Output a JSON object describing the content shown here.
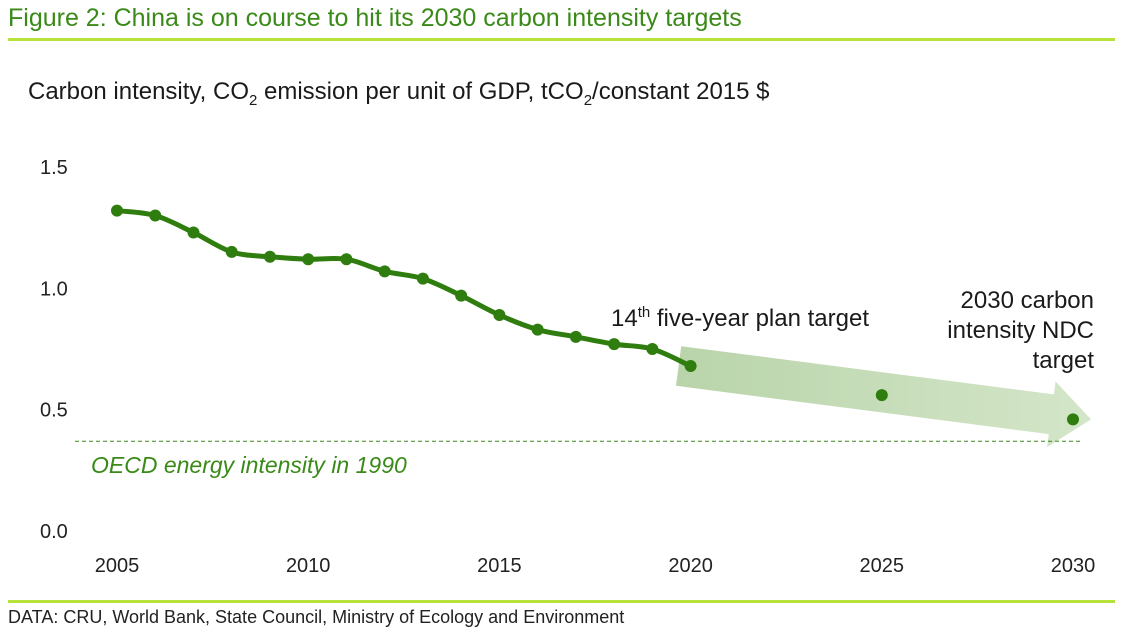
{
  "title": "Figure 2: China is on course to hit its 2030 carbon intensity targets",
  "source": "DATA: CRU, World Bank, State Council, Ministry of Ecology and Environment",
  "colors": {
    "accent": "#2e7d0e",
    "rule": "#b7e23a",
    "arrow": "#c5dcb9",
    "title": "#3a8a18"
  },
  "chart_data": {
    "type": "line",
    "ylabel": {
      "prefix": "Carbon intensity, CO",
      "sub1": "2",
      "middle": " emission per unit of GDP, tCO",
      "sub2": "2",
      "suffix": "/constant 2015 $"
    },
    "xlim": [
      2005,
      2030
    ],
    "ylim": [
      0,
      1.5
    ],
    "x_ticks": [
      2005,
      2010,
      2015,
      2020,
      2025,
      2030
    ],
    "y_ticks": [
      0.0,
      0.5,
      1.0,
      1.5
    ],
    "y_tick_labels": [
      "0.0",
      "0.5",
      "1.0",
      "1.5"
    ],
    "series": [
      {
        "name": "Carbon intensity",
        "x": [
          2005,
          2006,
          2007,
          2008,
          2009,
          2010,
          2011,
          2012,
          2013,
          2014,
          2015,
          2016,
          2017,
          2018,
          2019,
          2020
        ],
        "values": [
          1.32,
          1.3,
          1.23,
          1.15,
          1.13,
          1.12,
          1.12,
          1.07,
          1.04,
          0.97,
          0.89,
          0.83,
          0.8,
          0.77,
          0.75,
          0.68
        ]
      }
    ],
    "targets": [
      {
        "x": 2025,
        "value": 0.56
      },
      {
        "x": 2030,
        "value": 0.46
      }
    ],
    "reference_line": {
      "value": 0.37,
      "label": "OECD energy intensity in 1990"
    },
    "annotations": {
      "plan_target": {
        "base": "14",
        "sup": "th",
        "rest": " five-year plan target"
      },
      "ndc_target": [
        "2030 carbon",
        "intensity NDC",
        "target"
      ]
    }
  }
}
